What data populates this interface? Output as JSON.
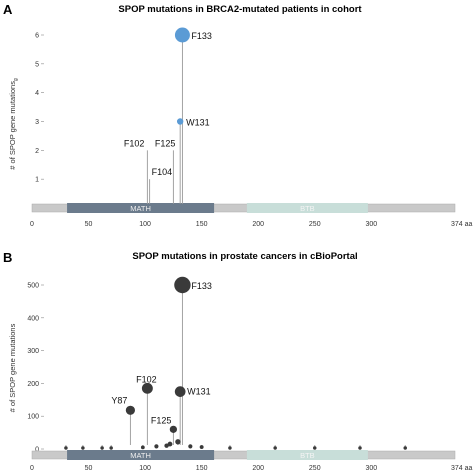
{
  "chart_data": [
    {
      "panel": "A",
      "type": "lollipop",
      "title": "SPOP mutations in BRCA2-mutated patients in cohort",
      "ylabel": "# of SPOP gene mutations",
      "ylabel_sub": "g",
      "ylim": [
        0,
        6
      ],
      "yticks": [
        1,
        2,
        3,
        4,
        5,
        6
      ],
      "xlim": [
        0,
        374
      ],
      "xticks": [
        0,
        50,
        100,
        150,
        200,
        250,
        300
      ],
      "xtick_end": "374 aa",
      "point_color": "#5b9bd5",
      "line_color": "#999999",
      "points": [
        {
          "label": "F133",
          "pos": 133,
          "count": 6
        },
        {
          "label": "W131",
          "pos": 131,
          "count": 3
        },
        {
          "label": "F102",
          "pos": 102,
          "count": 2
        },
        {
          "label": "F125",
          "pos": 125,
          "count": 2
        },
        {
          "label": "F104",
          "pos": 104,
          "count": 1
        }
      ],
      "domains": [
        {
          "name": "MATH",
          "start": 31,
          "end": 161,
          "color": "#6b7b8c"
        },
        {
          "name": "BTB",
          "start": 190,
          "end": 297,
          "color": "#c8ded9"
        }
      ]
    },
    {
      "panel": "B",
      "type": "lollipop",
      "title": "SPOP mutations in prostate cancers in cBioPortal",
      "ylabel": "# of SPOP gene mutations",
      "ylabel_sub": "",
      "ylim": [
        0,
        500
      ],
      "yticks": [
        0,
        100,
        200,
        300,
        400,
        500
      ],
      "xlim": [
        0,
        374
      ],
      "xticks": [
        0,
        50,
        100,
        150,
        200,
        250,
        300
      ],
      "xtick_end": "374 aa",
      "point_color": "#3a3a3a",
      "line_color": "#999999",
      "points": [
        {
          "label": "F133",
          "pos": 133,
          "count": 500
        },
        {
          "label": "F102",
          "pos": 102,
          "count": 185
        },
        {
          "label": "W131",
          "pos": 131,
          "count": 175
        },
        {
          "label": "Y87",
          "pos": 87,
          "count": 118
        },
        {
          "label": "F125",
          "pos": 125,
          "count": 60
        },
        {
          "label": "",
          "pos": 129,
          "count": 22
        },
        {
          "label": "",
          "pos": 122,
          "count": 15
        },
        {
          "label": "",
          "pos": 119,
          "count": 10
        },
        {
          "label": "",
          "pos": 110,
          "count": 8
        },
        {
          "label": "",
          "pos": 140,
          "count": 8
        },
        {
          "label": "",
          "pos": 150,
          "count": 6
        },
        {
          "label": "",
          "pos": 98,
          "count": 5
        },
        {
          "label": "",
          "pos": 30,
          "count": 3
        },
        {
          "label": "",
          "pos": 45,
          "count": 3
        },
        {
          "label": "",
          "pos": 62,
          "count": 3
        },
        {
          "label": "",
          "pos": 70,
          "count": 3
        },
        {
          "label": "",
          "pos": 175,
          "count": 3
        },
        {
          "label": "",
          "pos": 215,
          "count": 3
        },
        {
          "label": "",
          "pos": 250,
          "count": 3
        },
        {
          "label": "",
          "pos": 290,
          "count": 3
        },
        {
          "label": "",
          "pos": 330,
          "count": 3
        }
      ],
      "domains": [
        {
          "name": "MATH",
          "start": 31,
          "end": 161,
          "color": "#6b7b8c"
        },
        {
          "name": "BTB",
          "start": 190,
          "end": 297,
          "color": "#c8ded9"
        }
      ]
    }
  ]
}
